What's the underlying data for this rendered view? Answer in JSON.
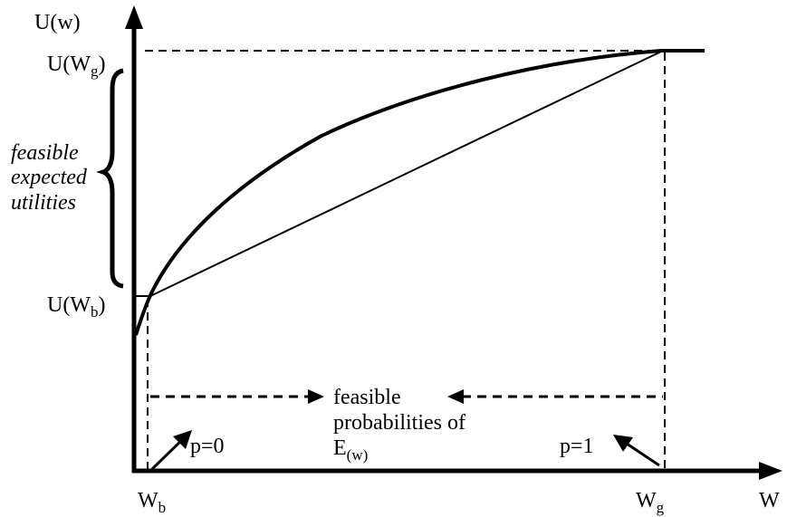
{
  "axes": {
    "y_label": "U(w)",
    "x_label": "W"
  },
  "y_ticks": {
    "u_wg": {
      "base": "U(W",
      "sub": "g",
      "close": ")"
    },
    "u_wb": {
      "base": "U(W",
      "sub": "b",
      "close": ")"
    }
  },
  "x_ticks": {
    "wb": {
      "base": "W",
      "sub": "b"
    },
    "wg": {
      "base": "W",
      "sub": "g"
    }
  },
  "brace_label": {
    "line1": "feasible",
    "line2": "expected",
    "line3": "utilities"
  },
  "probabilities_label": {
    "line1": "feasible",
    "line2": "probabilities of",
    "line3_base": "E",
    "line3_sub": "(w)"
  },
  "p_left": "p=0",
  "p_right": "p=1"
}
